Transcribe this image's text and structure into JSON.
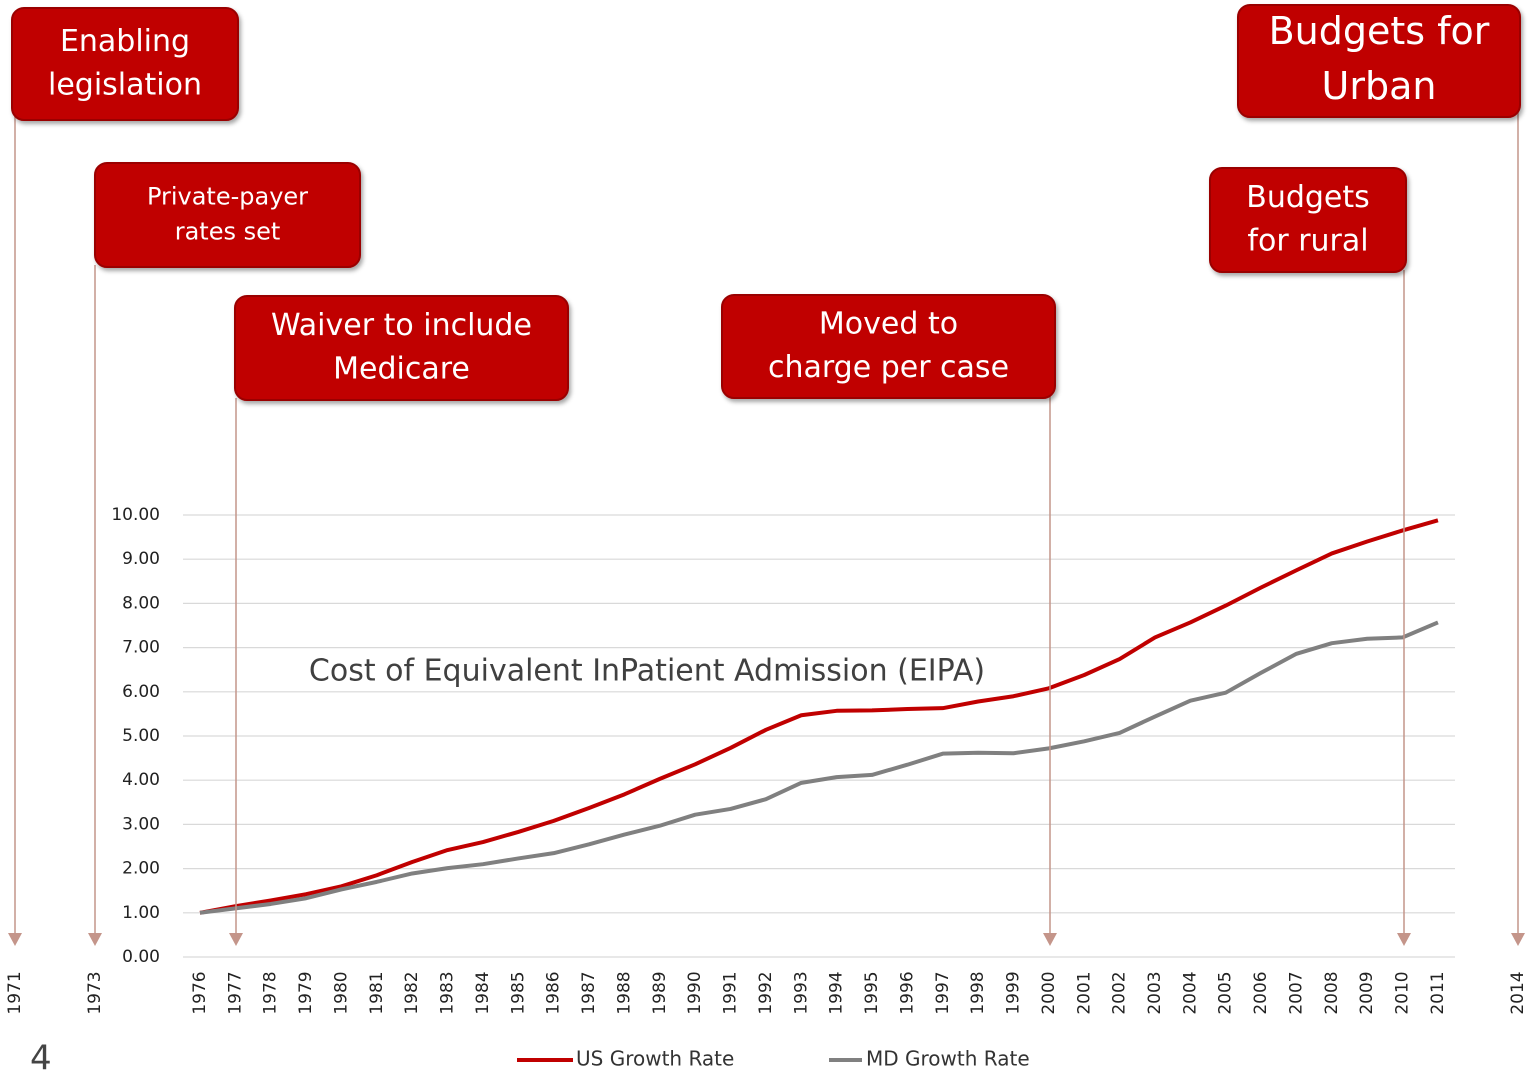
{
  "chart_data": {
    "type": "line",
    "title": "Cost of Equivalent InPatient Admission (EIPA)",
    "categories": [
      "1976",
      "1977",
      "1978",
      "1979",
      "1980",
      "1981",
      "1982",
      "1983",
      "1984",
      "1985",
      "1986",
      "1987",
      "1988",
      "1989",
      "1990",
      "1991",
      "1992",
      "1993",
      "1994",
      "1995",
      "1996",
      "1997",
      "1998",
      "1999",
      "2000",
      "2001",
      "2002",
      "2003",
      "2004",
      "2005",
      "2006",
      "2007",
      "2008",
      "2009",
      "2010",
      "2011"
    ],
    "series": [
      {
        "name": "US Growth Rate",
        "color": "#c00000",
        "values": [
          1.0,
          1.15,
          1.28,
          1.42,
          1.6,
          1.85,
          2.15,
          2.42,
          2.6,
          2.83,
          3.08,
          3.37,
          3.68,
          4.03,
          4.36,
          4.73,
          5.14,
          5.47,
          5.57,
          5.58,
          5.61,
          5.63,
          5.78,
          5.9,
          6.08,
          6.38,
          6.74,
          7.23,
          7.57,
          7.95,
          8.36,
          8.75,
          9.13,
          9.4,
          9.65,
          9.88
        ]
      },
      {
        "name": "MD Growth Rate",
        "color": "#808080",
        "values": [
          1.0,
          1.1,
          1.2,
          1.33,
          1.53,
          1.7,
          1.89,
          2.01,
          2.1,
          2.23,
          2.35,
          2.55,
          2.77,
          2.97,
          3.22,
          3.35,
          3.57,
          3.94,
          4.07,
          4.12,
          4.35,
          4.6,
          4.62,
          4.61,
          4.72,
          4.88,
          5.07,
          5.44,
          5.8,
          5.98,
          6.43,
          6.86,
          7.1,
          7.2,
          7.23,
          7.57
        ]
      }
    ],
    "ylim": [
      0,
      10
    ],
    "yticks": [
      {
        "value": 0,
        "label": "0.00"
      },
      {
        "value": 1,
        "label": "1.00"
      },
      {
        "value": 2,
        "label": "2.00"
      },
      {
        "value": 3,
        "label": "3.00"
      },
      {
        "value": 4,
        "label": "4.00"
      },
      {
        "value": 5,
        "label": "5.00"
      },
      {
        "value": 6,
        "label": "6.00"
      },
      {
        "value": 7,
        "label": "7.00"
      },
      {
        "value": 8,
        "label": "8.00"
      },
      {
        "value": 9,
        "label": "9.00"
      },
      {
        "value": 10,
        "label": "10.00"
      }
    ],
    "grid": true,
    "legend": "bottom",
    "annotations": [
      {
        "lines": [
          "Enabling",
          "legislation"
        ],
        "year": "1971"
      },
      {
        "lines": [
          "Private-payer",
          "rates set"
        ],
        "year": "1973"
      },
      {
        "lines": [
          "Waiver to include",
          "Medicare"
        ],
        "year": "1977"
      },
      {
        "lines": [
          "Moved to",
          "charge per case"
        ],
        "year": "2000"
      },
      {
        "lines": [
          "Budgets",
          "for rural"
        ],
        "year": "2010"
      },
      {
        "lines": [
          "Budgets for",
          "Urban"
        ],
        "year": "2014"
      }
    ]
  },
  "page_number": "4"
}
